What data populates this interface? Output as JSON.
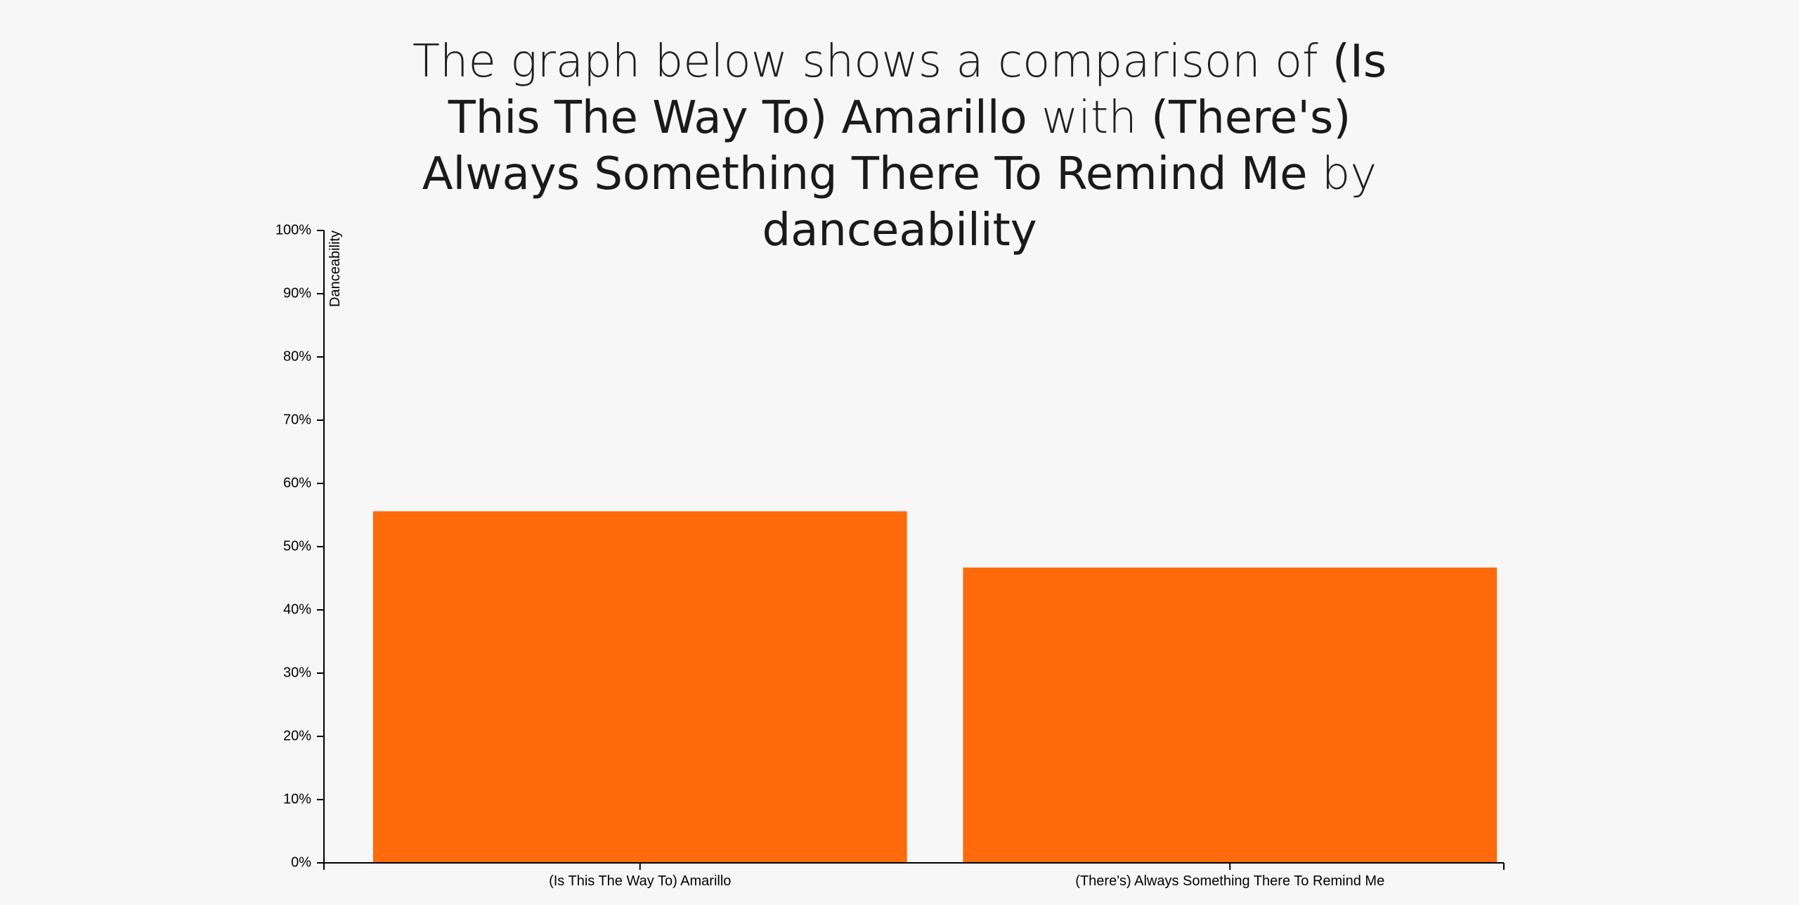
{
  "header": {
    "title_prefix": "The graph below shows a comparison of ",
    "song_a": "(Is This The Way To) Amarillo",
    "connector": " with ",
    "song_b": "(There's) Always Something There To Remind Me",
    "by_word": " by ",
    "metric": "danceability"
  },
  "colors": {
    "bar": "#ff6a0a",
    "background": "#f7f7f7",
    "axis": "#000000"
  },
  "chart_data": {
    "type": "bar",
    "categories": [
      "(Is This The Way To) Amarillo",
      "(There's) Always Something There To Remind Me"
    ],
    "values": [
      0.556,
      0.467
    ],
    "ylabel": "Danceability",
    "ylim": [
      0,
      1
    ],
    "yticks": [
      0,
      0.1,
      0.2,
      0.3,
      0.4,
      0.5,
      0.6,
      0.7,
      0.8,
      0.9,
      1.0
    ],
    "ytick_labels": [
      "0%",
      "10%",
      "20%",
      "30%",
      "40%",
      "50%",
      "60%",
      "70%",
      "80%",
      "90%",
      "100%"
    ],
    "grid": false,
    "legend": "none"
  }
}
